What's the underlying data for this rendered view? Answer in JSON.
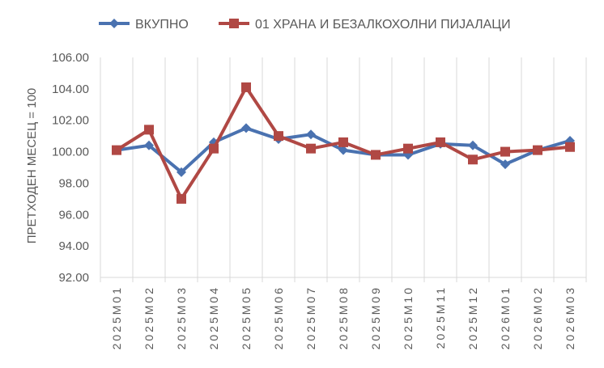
{
  "chart_data": {
    "type": "line",
    "title": "",
    "xlabel": "",
    "ylabel": "ПРЕТХОДЕН МЕСЕЦ = 100",
    "ylim": [
      92,
      106
    ],
    "yticks": [
      "92.00",
      "94.00",
      "96.00",
      "98.00",
      "100.00",
      "102.00",
      "104.00",
      "106.00"
    ],
    "grid": "vertical",
    "legend_position": "top",
    "categories": [
      "2025M01",
      "2025M02",
      "2025M03",
      "2025M04",
      "2025M05",
      "2025M06",
      "2025M07",
      "2025M08",
      "2025M09",
      "2025M10",
      "2025M11",
      "2025M12",
      "2026M01",
      "2026M02",
      "2026M03"
    ],
    "series": [
      {
        "name": "ВКУПНО",
        "color": "#4A72B0",
        "marker": "diamond",
        "values": [
          100.1,
          100.4,
          98.7,
          100.6,
          101.5,
          100.8,
          101.1,
          100.1,
          99.8,
          99.8,
          100.5,
          100.4,
          99.2,
          100.1,
          100.7
        ]
      },
      {
        "name": "01 ХРАНА И БЕЗАЛКОХОЛНИ ПИЈАЛАЦИ",
        "color": "#B04844",
        "marker": "square",
        "values": [
          100.1,
          101.4,
          97.0,
          100.2,
          104.1,
          101.0,
          100.2,
          100.6,
          99.8,
          100.2,
          100.6,
          99.5,
          100.0,
          100.1,
          100.3
        ]
      }
    ]
  }
}
